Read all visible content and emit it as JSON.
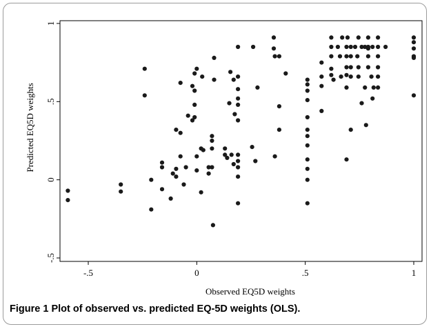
{
  "caption": {
    "label": "Figure 1",
    "text": "Plot of observed vs. predicted EQ-5D weights (OLS)."
  },
  "chart_data": {
    "type": "scatter",
    "xlabel": "Observed EQ5D weights",
    "ylabel": "Predicted EQ5D weights",
    "xlim": [
      -0.6,
      1.0
    ],
    "ylim": [
      -0.5,
      1.0
    ],
    "xticks": [
      -0.5,
      0,
      0.5,
      1
    ],
    "xtick_labels": [
      "-.5",
      "0",
      ".5",
      "1"
    ],
    "yticks": [
      -0.5,
      0,
      0.5,
      1
    ],
    "ytick_labels": [
      "-.5",
      "0",
      ".5",
      "1"
    ],
    "grid": false,
    "marker_color": "#1a1a1a",
    "points": [
      [
        -0.594,
        -0.07
      ],
      [
        -0.594,
        -0.13
      ],
      [
        -0.35,
        -0.03
      ],
      [
        -0.35,
        -0.075
      ],
      [
        -0.24,
        0.71
      ],
      [
        -0.24,
        0.54
      ],
      [
        -0.21,
        0.0
      ],
      [
        -0.21,
        -0.19
      ],
      [
        -0.16,
        0.11
      ],
      [
        -0.16,
        0.08
      ],
      [
        -0.16,
        -0.06
      ],
      [
        -0.12,
        -0.12
      ],
      [
        -0.11,
        0.04
      ],
      [
        -0.095,
        0.32
      ],
      [
        -0.095,
        0.07
      ],
      [
        -0.095,
        0.02
      ],
      [
        -0.075,
        0.62
      ],
      [
        -0.075,
        0.3
      ],
      [
        -0.075,
        0.15
      ],
      [
        -0.06,
        -0.03
      ],
      [
        -0.05,
        0.08
      ],
      [
        -0.04,
        0.41
      ],
      [
        -0.02,
        0.6
      ],
      [
        -0.02,
        0.38
      ],
      [
        -0.01,
        0.68
      ],
      [
        -0.01,
        0.57
      ],
      [
        -0.01,
        0.48
      ],
      [
        -0.01,
        0.4
      ],
      [
        0.0,
        0.15
      ],
      [
        0.0,
        0.06
      ],
      [
        0.0,
        0.71
      ],
      [
        0.02,
        0.2
      ],
      [
        0.02,
        -0.08
      ],
      [
        0.025,
        0.66
      ],
      [
        0.03,
        0.19
      ],
      [
        0.055,
        0.08
      ],
      [
        0.055,
        0.04
      ],
      [
        0.07,
        0.08
      ],
      [
        0.07,
        0.28
      ],
      [
        0.07,
        0.25
      ],
      [
        0.07,
        0.2
      ],
      [
        0.075,
        -0.29
      ],
      [
        0.08,
        0.78
      ],
      [
        0.08,
        0.64
      ],
      [
        0.13,
        0.2
      ],
      [
        0.13,
        0.16
      ],
      [
        0.14,
        0.14
      ],
      [
        0.15,
        0.49
      ],
      [
        0.155,
        0.69
      ],
      [
        0.16,
        0.16
      ],
      [
        0.17,
        0.64
      ],
      [
        0.17,
        0.1
      ],
      [
        0.175,
        0.42
      ],
      [
        0.19,
        0.85
      ],
      [
        0.19,
        0.66
      ],
      [
        0.19,
        0.58
      ],
      [
        0.19,
        0.52
      ],
      [
        0.19,
        0.48
      ],
      [
        0.19,
        0.38
      ],
      [
        0.19,
        0.16
      ],
      [
        0.19,
        0.12
      ],
      [
        0.19,
        0.08
      ],
      [
        0.19,
        0.02
      ],
      [
        0.19,
        -0.15
      ],
      [
        0.255,
        0.21
      ],
      [
        0.26,
        0.85
      ],
      [
        0.27,
        0.12
      ],
      [
        0.28,
        0.59
      ],
      [
        0.355,
        0.91
      ],
      [
        0.355,
        0.84
      ],
      [
        0.36,
        0.79
      ],
      [
        0.36,
        0.15
      ],
      [
        0.38,
        0.79
      ],
      [
        0.38,
        0.47
      ],
      [
        0.38,
        0.32
      ],
      [
        0.41,
        0.68
      ],
      [
        0.51,
        0.64
      ],
      [
        0.51,
        0.61
      ],
      [
        0.51,
        0.57
      ],
      [
        0.51,
        0.51
      ],
      [
        0.51,
        0.4
      ],
      [
        0.51,
        0.32
      ],
      [
        0.51,
        0.28
      ],
      [
        0.51,
        0.22
      ],
      [
        0.51,
        0.13
      ],
      [
        0.51,
        0.07
      ],
      [
        0.51,
        0.0
      ],
      [
        0.51,
        -0.15
      ],
      [
        0.575,
        0.75
      ],
      [
        0.575,
        0.66
      ],
      [
        0.575,
        0.6
      ],
      [
        0.575,
        0.44
      ],
      [
        0.62,
        0.91
      ],
      [
        0.62,
        0.85
      ],
      [
        0.62,
        0.79
      ],
      [
        0.62,
        0.71
      ],
      [
        0.62,
        0.67
      ],
      [
        0.63,
        0.64
      ],
      [
        0.65,
        0.85
      ],
      [
        0.66,
        0.79
      ],
      [
        0.665,
        0.66
      ],
      [
        0.67,
        0.91
      ],
      [
        0.69,
        0.85
      ],
      [
        0.69,
        0.79
      ],
      [
        0.69,
        0.72
      ],
      [
        0.69,
        0.67
      ],
      [
        0.69,
        0.59
      ],
      [
        0.69,
        0.13
      ],
      [
        0.695,
        0.91
      ],
      [
        0.71,
        0.85
      ],
      [
        0.71,
        0.79
      ],
      [
        0.71,
        0.72
      ],
      [
        0.71,
        0.66
      ],
      [
        0.71,
        0.32
      ],
      [
        0.73,
        0.85
      ],
      [
        0.74,
        0.79
      ],
      [
        0.745,
        0.91
      ],
      [
        0.745,
        0.72
      ],
      [
        0.745,
        0.66
      ],
      [
        0.76,
        0.85
      ],
      [
        0.76,
        0.49
      ],
      [
        0.775,
        0.85
      ],
      [
        0.775,
        0.59
      ],
      [
        0.78,
        0.35
      ],
      [
        0.79,
        0.91
      ],
      [
        0.79,
        0.85
      ],
      [
        0.79,
        0.84
      ],
      [
        0.79,
        0.79
      ],
      [
        0.79,
        0.72
      ],
      [
        0.805,
        0.66
      ],
      [
        0.81,
        0.85
      ],
      [
        0.81,
        0.52
      ],
      [
        0.815,
        0.59
      ],
      [
        0.835,
        0.91
      ],
      [
        0.835,
        0.85
      ],
      [
        0.835,
        0.79
      ],
      [
        0.835,
        0.72
      ],
      [
        0.835,
        0.66
      ],
      [
        0.835,
        0.59
      ],
      [
        0.87,
        0.85
      ],
      [
        1.0,
        0.91
      ],
      [
        1.0,
        0.88
      ],
      [
        1.0,
        0.84
      ],
      [
        1.0,
        0.79
      ],
      [
        1.0,
        0.78
      ],
      [
        1.0,
        0.54
      ]
    ]
  }
}
